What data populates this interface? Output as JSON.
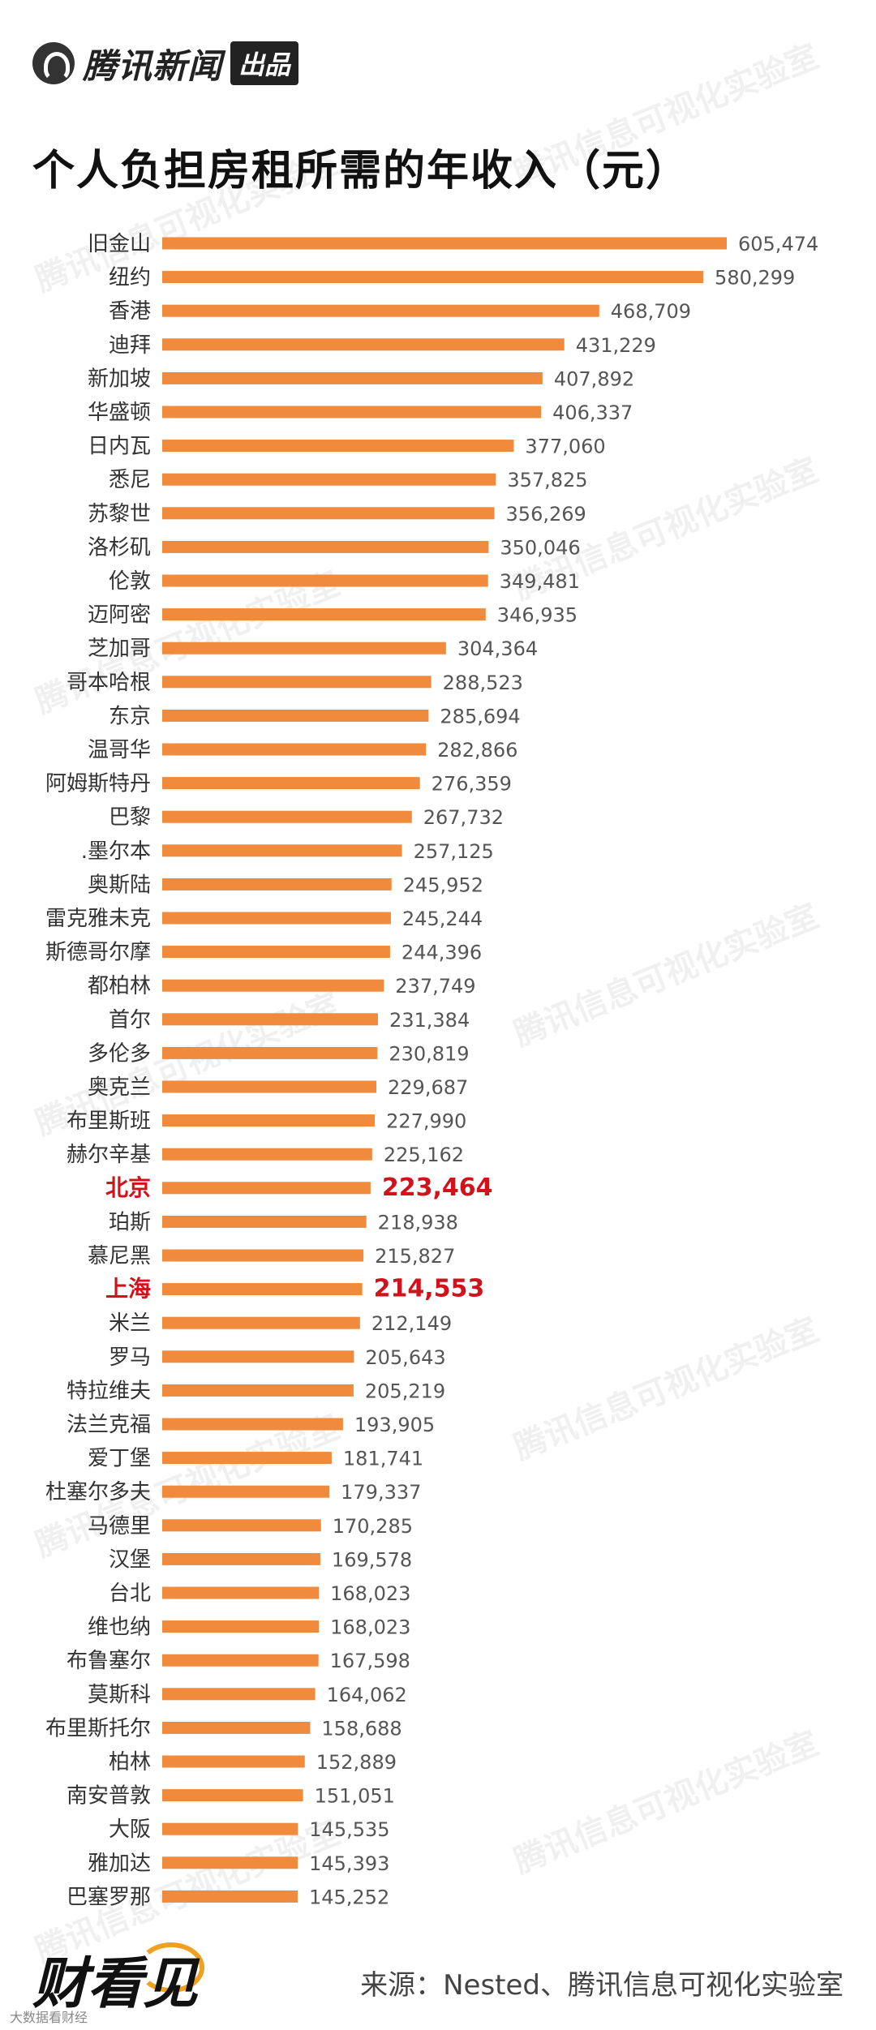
{
  "header": {
    "brand": "腾讯新闻",
    "badge": "出品"
  },
  "watermark_text": "腾讯信息可视化实验室",
  "chart_data": {
    "type": "bar",
    "orientation": "horizontal",
    "title": "个人负担房租所需的年收入（元）",
    "bar_color": "#f08a3c",
    "highlight_color": "#d0121b",
    "highlighted": [
      "北京",
      "上海"
    ],
    "categories": [
      "旧金山",
      "纽约",
      "香港",
      "迪拜",
      "新加坡",
      "华盛顿",
      "日内瓦",
      "悉尼",
      "苏黎世",
      "洛杉矶",
      "伦敦",
      "迈阿密",
      "芝加哥",
      "哥本哈根",
      "东京",
      "温哥华",
      "阿姆斯特丹",
      "巴黎",
      ".墨尔本",
      "奥斯陆",
      "雷克雅未克",
      "斯德哥尔摩",
      "都柏林",
      "首尔",
      "多伦多",
      "奥克兰",
      "布里斯班",
      "赫尔辛基",
      "北京",
      "珀斯",
      "慕尼黑",
      "上海",
      "米兰",
      "罗马",
      "特拉维夫",
      "法兰克福",
      "爱丁堡",
      "杜塞尔多夫",
      "马德里",
      "汉堡",
      "台北",
      "维也纳",
      "布鲁塞尔",
      "莫斯科",
      "布里斯托尔",
      "柏林",
      "南安普敦",
      "大阪",
      "雅加达",
      "巴塞罗那"
    ],
    "values": [
      605474,
      580299,
      468709,
      431229,
      407892,
      406337,
      377060,
      357825,
      356269,
      350046,
      349481,
      346935,
      304364,
      288523,
      285694,
      282866,
      276359,
      267732,
      257125,
      245952,
      245244,
      244396,
      237749,
      231384,
      230819,
      229687,
      227990,
      225162,
      223464,
      218938,
      215827,
      214553,
      212149,
      205643,
      205219,
      193905,
      181741,
      179337,
      170285,
      169578,
      168023,
      168023,
      167598,
      164062,
      158688,
      152889,
      151051,
      145535,
      145393,
      145252
    ],
    "value_labels": [
      "605,474",
      "580,299",
      "468,709",
      "431,229",
      "407,892",
      "406,337",
      "377,060",
      "357,825",
      "356,269",
      "350,046",
      "349,481",
      "346,935",
      "304,364",
      "288,523",
      "285,694",
      "282,866",
      "276,359",
      "267,732",
      "257,125",
      "245,952",
      "245,244",
      "244,396",
      "237,749",
      "231,384",
      "230,819",
      "229,687",
      "227,990",
      "225,162",
      "223,464",
      "218,938",
      "215,827",
      "214,553",
      "212,149",
      "205,643",
      "205,219",
      "193,905",
      "181,741",
      "179,337",
      "170,285",
      "169,578",
      "168,023",
      "168,023",
      "167,598",
      "164,062",
      "158,688",
      "152,889",
      "151,051",
      "145,535",
      "145,393",
      "145,252"
    ]
  },
  "footer": {
    "logo": "财看见",
    "logo_sub": "大数据看财经",
    "source": "来源：Nested、腾讯信息可视化实验室"
  }
}
